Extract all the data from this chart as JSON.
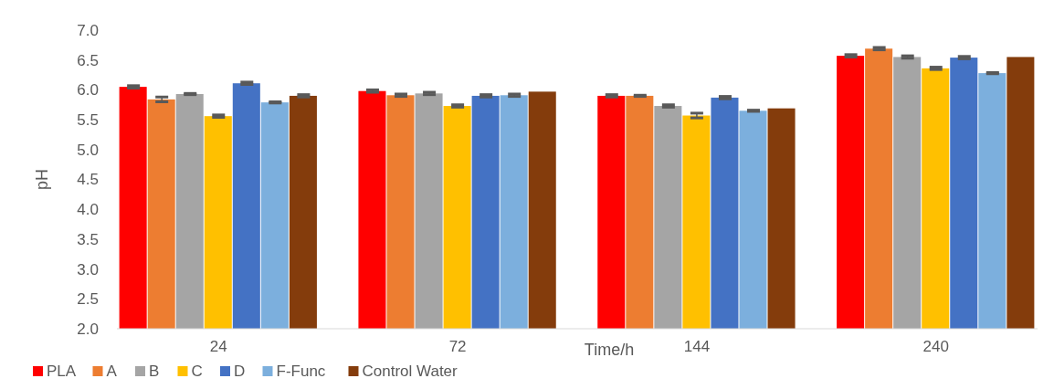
{
  "chart_data": {
    "type": "bar",
    "xlabel": "Time/h",
    "ylabel": "pH",
    "categories": [
      "24",
      "72",
      "144",
      "240"
    ],
    "ylim": [
      2.0,
      7.0
    ],
    "yticks": [
      {
        "value": 2,
        "label": "2.0"
      },
      {
        "value": 2.5,
        "label": "2.5"
      },
      {
        "value": 3,
        "label": "3.0"
      },
      {
        "value": 3.5,
        "label": "3.5"
      },
      {
        "value": 4,
        "label": "4.0"
      },
      {
        "value": 4.5,
        "label": "4.5"
      },
      {
        "value": 5,
        "label": "5.0"
      },
      {
        "value": 5.5,
        "label": "5.5"
      },
      {
        "value": 6,
        "label": "6.0"
      },
      {
        "value": 6.5,
        "label": "6.5"
      },
      {
        "value": 7,
        "label": "7.0"
      }
    ],
    "grid": false,
    "legend": "bottom left",
    "series": [
      {
        "name": "PLA",
        "color": "#ff0000",
        "values": [
          6.05,
          5.98,
          5.9,
          6.57
        ],
        "errors": [
          0.02,
          0.02,
          0.02,
          0.02
        ]
      },
      {
        "name": "A",
        "color": "#ed7d31",
        "values": [
          5.84,
          5.91,
          5.9,
          6.69
        ],
        "errors": [
          0.04,
          0.02,
          0.01,
          0.02
        ]
      },
      {
        "name": "B",
        "color": "#a5a5a5",
        "values": [
          5.93,
          5.94,
          5.73,
          6.55
        ],
        "errors": [
          0.01,
          0.02,
          0.02,
          0.02
        ]
      },
      {
        "name": "C",
        "color": "#ffc000",
        "values": [
          5.56,
          5.73,
          5.57,
          6.36
        ],
        "errors": [
          0.02,
          0.02,
          0.04,
          0.02
        ]
      },
      {
        "name": "D",
        "color": "#4472c4",
        "values": [
          6.11,
          5.9,
          5.87,
          6.54
        ],
        "errors": [
          0.02,
          0.02,
          0.02,
          0.02
        ]
      },
      {
        "name": "F-Func",
        "color": "#7cafdd",
        "values": [
          5.79,
          5.91,
          5.65,
          6.28
        ],
        "errors": [
          0.01,
          0.02,
          0.01,
          0.01
        ]
      },
      {
        "name": "Control Water",
        "color": "#843c0c",
        "values": [
          5.9,
          5.97,
          5.69,
          6.55
        ],
        "errors": [
          0.02,
          null,
          null,
          null
        ]
      }
    ]
  }
}
